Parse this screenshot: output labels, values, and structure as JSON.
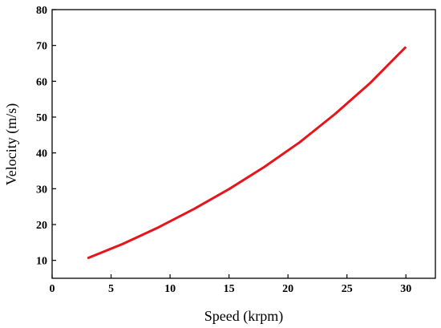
{
  "chart_data": {
    "type": "line",
    "title": "",
    "xlabel": "Speed (krpm)",
    "ylabel": "Velocity (m/s)",
    "xlim": [
      0,
      32.5
    ],
    "ylim": [
      5,
      80
    ],
    "xticks": [
      0,
      5,
      10,
      15,
      20,
      25,
      30
    ],
    "yticks": [
      10,
      20,
      30,
      40,
      50,
      60,
      70,
      80
    ],
    "grid": false,
    "legend": "none",
    "series": [
      {
        "color": "#e8141b",
        "x": [
          3,
          6,
          9,
          12,
          15,
          18,
          21,
          24,
          27,
          30
        ],
        "y": [
          10.6,
          14.6,
          19.2,
          24.3,
          29.9,
          36.1,
          43.0,
          50.9,
          59.6,
          69.6
        ]
      }
    ]
  }
}
